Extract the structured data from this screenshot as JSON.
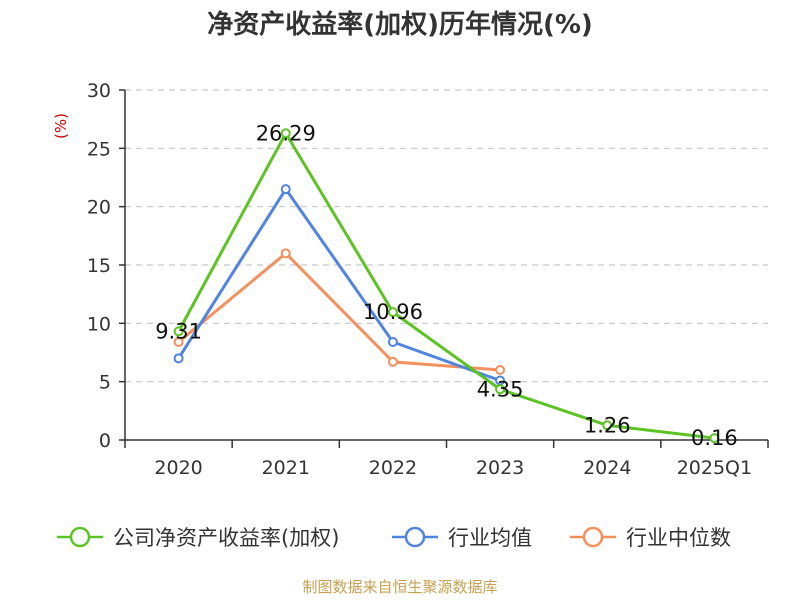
{
  "chart_data": {
    "type": "line",
    "title": "净资产收益率(加权)历年情况(%)",
    "ylabel": "(%)",
    "ylim": [
      0,
      30
    ],
    "yticks": [
      0,
      5,
      10,
      15,
      20,
      25,
      30
    ],
    "grid": true,
    "legend_position": "bottom",
    "categories": [
      "2020",
      "2021",
      "2022",
      "2023",
      "2024",
      "2025Q1"
    ],
    "series": [
      {
        "name": "公司净资产收益率(加权)",
        "color": "#5bc423",
        "values": [
          9.31,
          26.29,
          10.96,
          4.35,
          1.26,
          0.16
        ],
        "show_labels": true
      },
      {
        "name": "行业均值",
        "color": "#4f84e0",
        "values": [
          7.0,
          21.5,
          8.4,
          5.1,
          null,
          null
        ],
        "show_labels": false
      },
      {
        "name": "行业中位数",
        "color": "#f58f5c",
        "values": [
          8.4,
          16.0,
          6.7,
          6.0,
          null,
          null
        ],
        "show_labels": false
      }
    ],
    "data_labels": [
      "9.31",
      "26.29",
      "10.96",
      "4.35",
      "1.26",
      "0.16"
    ]
  },
  "colors": {
    "unit_label": "#cc0000",
    "source": "#c8a050",
    "axis": "#333333"
  },
  "source_text": "制图数据来自恒生聚源数据库"
}
